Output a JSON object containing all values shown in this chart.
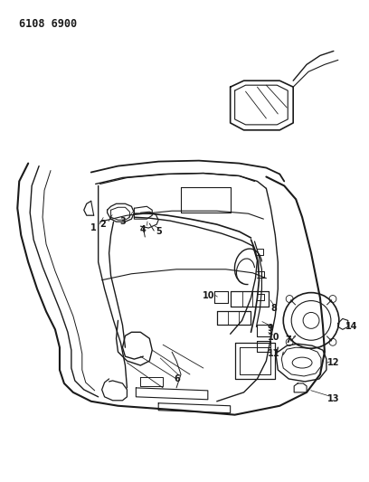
{
  "title_code": "6108 6900",
  "bg_color": "#ffffff",
  "line_color": "#1a1a1a",
  "title_fontsize": 8.5,
  "label_fontsize": 6.5,
  "label_fontsize_bold": 7.0
}
